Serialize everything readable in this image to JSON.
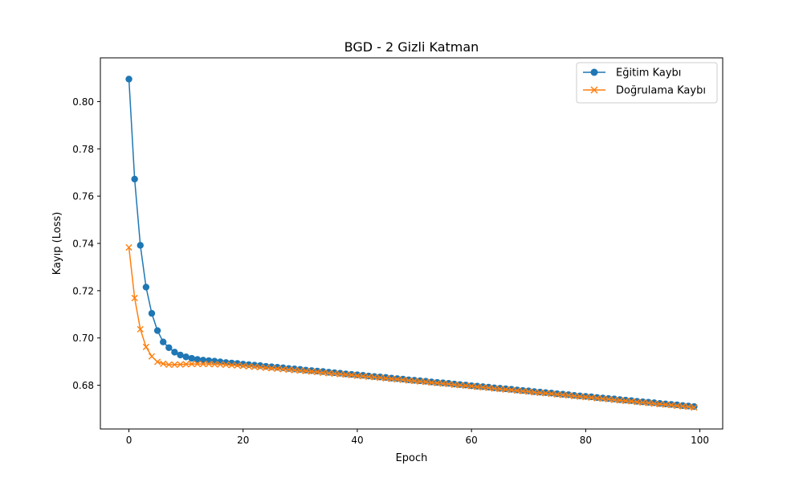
{
  "chart_data": {
    "type": "line",
    "title": "BGD - 2 Gizli Katman",
    "xlabel": "Epoch",
    "ylabel": "Kayıp (Loss)",
    "xlim": [
      -5,
      104
    ],
    "ylim": [
      0.6615,
      0.8185
    ],
    "xticks": [
      0,
      20,
      40,
      60,
      80,
      100
    ],
    "yticks": [
      0.68,
      0.7,
      0.72,
      0.74,
      0.76,
      0.78,
      0.8
    ],
    "ytick_labels": [
      "0.68",
      "0.70",
      "0.72",
      "0.74",
      "0.76",
      "0.78",
      "0.80"
    ],
    "grid": false,
    "legend_position": "top-right",
    "series": [
      {
        "name": "Eğitim Kaybı",
        "color": "#1f77b4",
        "marker": "circle",
        "x": [
          0,
          1,
          2,
          3,
          4,
          5,
          6,
          7,
          8,
          9,
          10,
          11,
          12,
          13,
          14,
          15,
          16,
          17,
          18,
          19,
          20,
          21,
          22,
          23,
          24,
          25,
          26,
          27,
          28,
          29,
          30,
          31,
          32,
          33,
          34,
          35,
          36,
          37,
          38,
          39,
          40,
          41,
          42,
          43,
          44,
          45,
          46,
          47,
          48,
          49,
          50,
          51,
          52,
          53,
          54,
          55,
          56,
          57,
          58,
          59,
          60,
          61,
          62,
          63,
          64,
          65,
          66,
          67,
          68,
          69,
          70,
          71,
          72,
          73,
          74,
          75,
          76,
          77,
          78,
          79,
          80,
          81,
          82,
          83,
          84,
          85,
          86,
          87,
          88,
          89,
          90,
          91,
          92,
          93,
          94,
          95,
          96,
          97,
          98,
          99
        ],
        "values": [
          0.8095,
          0.7672,
          0.7392,
          0.7215,
          0.7104,
          0.7031,
          0.6983,
          0.6959,
          0.694,
          0.6928,
          0.692,
          0.6914,
          0.6909,
          0.6906,
          0.6904,
          0.6902,
          0.6899,
          0.6896,
          0.6894,
          0.6892,
          0.6889,
          0.6887,
          0.6885,
          0.6883,
          0.688,
          0.6878,
          0.6876,
          0.6874,
          0.6871,
          0.6869,
          0.6867,
          0.6864,
          0.6862,
          0.686,
          0.6858,
          0.6855,
          0.6853,
          0.6851,
          0.6848,
          0.6846,
          0.6844,
          0.6842,
          0.6839,
          0.6837,
          0.6835,
          0.6833,
          0.683,
          0.6828,
          0.6826,
          0.6823,
          0.6821,
          0.6819,
          0.6817,
          0.6814,
          0.6812,
          0.681,
          0.6808,
          0.6805,
          0.6803,
          0.6801,
          0.6798,
          0.6796,
          0.6794,
          0.6792,
          0.6789,
          0.6787,
          0.6785,
          0.6783,
          0.678,
          0.6778,
          0.6776,
          0.6773,
          0.6771,
          0.6769,
          0.6767,
          0.6764,
          0.6762,
          0.676,
          0.6757,
          0.6755,
          0.6753,
          0.6751,
          0.6748,
          0.6746,
          0.6744,
          0.6742,
          0.6739,
          0.6737,
          0.6735,
          0.6732,
          0.673,
          0.6728,
          0.6726,
          0.6723,
          0.6721,
          0.6719,
          0.6717,
          0.6714,
          0.6712,
          0.671
        ]
      },
      {
        "name": "Doğrulama Kaybı",
        "color": "#ff7f0e",
        "marker": "x",
        "x": [
          0,
          1,
          2,
          3,
          4,
          5,
          6,
          7,
          8,
          9,
          10,
          11,
          12,
          13,
          14,
          15,
          16,
          17,
          18,
          19,
          20,
          21,
          22,
          23,
          24,
          25,
          26,
          27,
          28,
          29,
          30,
          31,
          32,
          33,
          34,
          35,
          36,
          37,
          38,
          39,
          40,
          41,
          42,
          43,
          44,
          45,
          46,
          47,
          48,
          49,
          50,
          51,
          52,
          53,
          54,
          55,
          56,
          57,
          58,
          59,
          60,
          61,
          62,
          63,
          64,
          65,
          66,
          67,
          68,
          69,
          70,
          71,
          72,
          73,
          74,
          75,
          76,
          77,
          78,
          79,
          80,
          81,
          82,
          83,
          84,
          85,
          86,
          87,
          88,
          89,
          90,
          91,
          92,
          93,
          94,
          95,
          96,
          97,
          98,
          99
        ],
        "values": [
          0.7383,
          0.7169,
          0.7037,
          0.6962,
          0.6922,
          0.6899,
          0.6891,
          0.6887,
          0.6887,
          0.6888,
          0.6889,
          0.689,
          0.689,
          0.689,
          0.689,
          0.6889,
          0.6888,
          0.6887,
          0.6885,
          0.6884,
          0.6882,
          0.688,
          0.6878,
          0.6876,
          0.6874,
          0.6872,
          0.687,
          0.6868,
          0.6866,
          0.6864,
          0.6862,
          0.686,
          0.6858,
          0.6856,
          0.6853,
          0.6851,
          0.6849,
          0.6847,
          0.6845,
          0.6843,
          0.684,
          0.6838,
          0.6836,
          0.6834,
          0.6832,
          0.6829,
          0.6827,
          0.6825,
          0.6823,
          0.682,
          0.6818,
          0.6816,
          0.6814,
          0.6811,
          0.6809,
          0.6807,
          0.6805,
          0.6802,
          0.68,
          0.6798,
          0.6796,
          0.6793,
          0.6791,
          0.6789,
          0.6786,
          0.6784,
          0.6782,
          0.678,
          0.6777,
          0.6775,
          0.6773,
          0.677,
          0.6768,
          0.6766,
          0.6764,
          0.6761,
          0.6759,
          0.6757,
          0.6754,
          0.6752,
          0.675,
          0.6748,
          0.6745,
          0.6743,
          0.6741,
          0.6738,
          0.6736,
          0.6734,
          0.6732,
          0.6729,
          0.6727,
          0.6725,
          0.6722,
          0.672,
          0.6718,
          0.6716,
          0.6713,
          0.6711,
          0.6709,
          0.6706
        ]
      }
    ]
  }
}
